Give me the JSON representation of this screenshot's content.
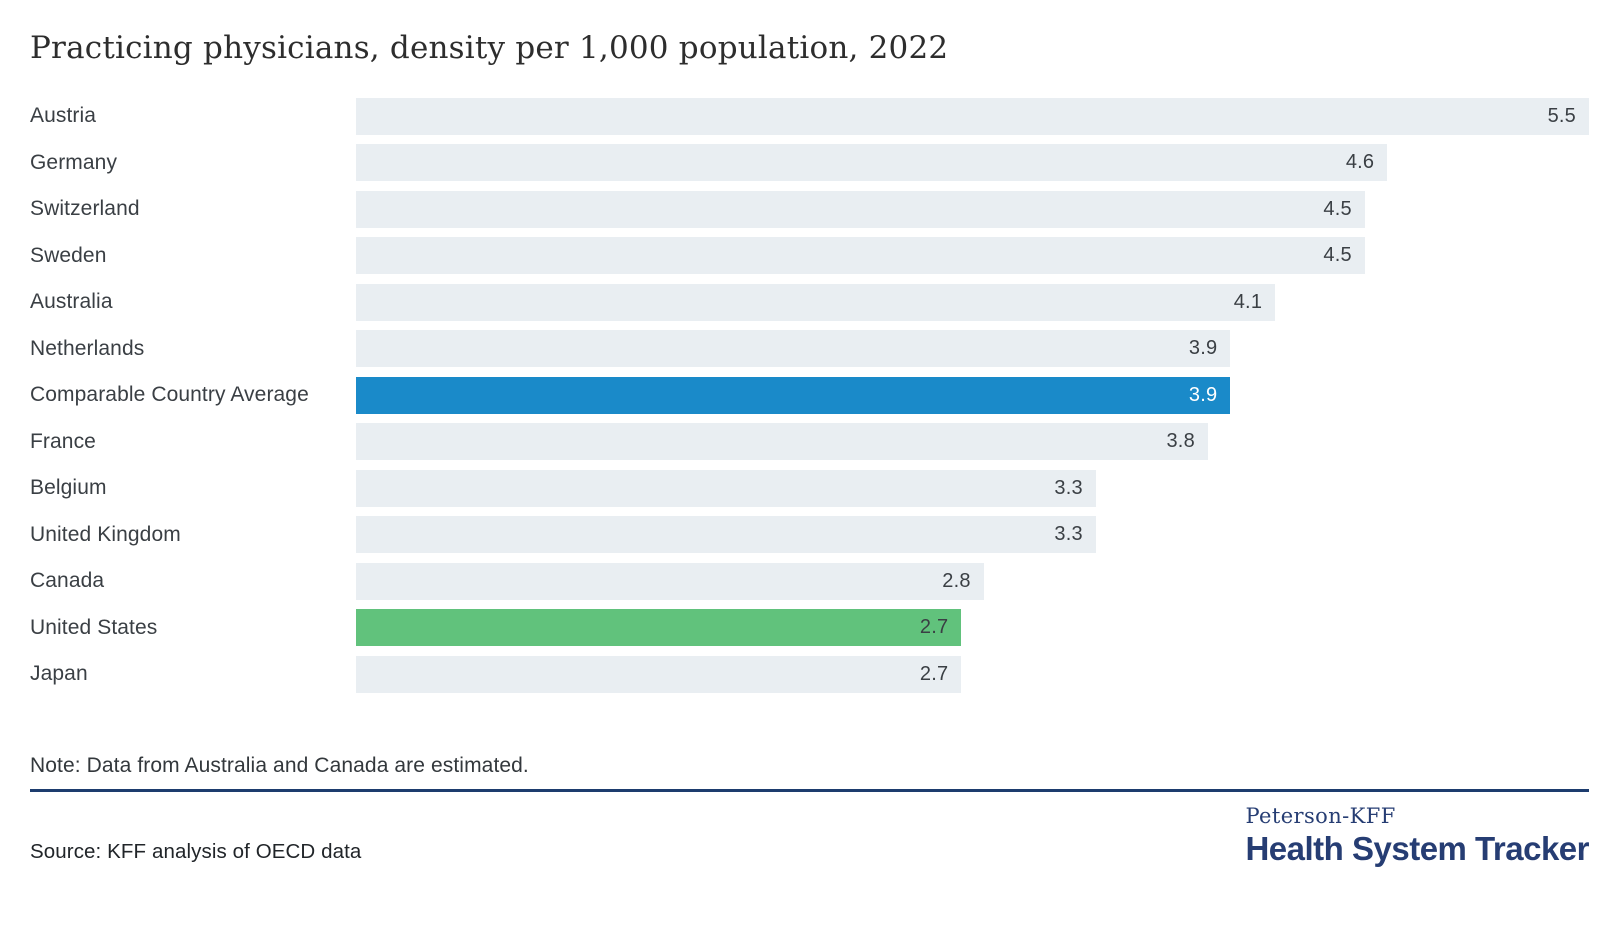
{
  "title": "Practicing physicians, density per 1,000 population, 2022",
  "note": "Note: Data from Australia and Canada are estimated.",
  "source": "Source: KFF analysis of OECD data",
  "logo": {
    "line1": "Peterson-KFF",
    "line2": "Health System Tracker"
  },
  "colors": {
    "title": "#2d2d2d",
    "label": "#3a3f44",
    "bar_default": "#e9eef2",
    "bar_average": "#1a8ac9",
    "bar_united_states": "#61c27c",
    "value_dark": "#3a3f44",
    "value_light": "#ffffff",
    "note": "#33383c",
    "source": "#212529",
    "rule_navy": "#1d3c6e",
    "logo_navy": "#263d73"
  },
  "chart_data": {
    "type": "bar",
    "orientation": "horizontal",
    "title": "Practicing physicians, density per 1,000 population, 2022",
    "xlabel": "",
    "ylabel": "",
    "xlim": [
      0,
      5.5
    ],
    "grid": false,
    "legend": false,
    "value_labels_position": "inside-end",
    "categories": [
      "Austria",
      "Germany",
      "Switzerland",
      "Sweden",
      "Australia",
      "Netherlands",
      "Comparable Country Average",
      "France",
      "Belgium",
      "United Kingdom",
      "Canada",
      "United States",
      "Japan"
    ],
    "values": [
      5.5,
      4.6,
      4.5,
      4.5,
      4.1,
      3.9,
      3.9,
      3.8,
      3.3,
      3.3,
      2.8,
      2.7,
      2.7
    ],
    "value_labels": [
      "5.5",
      "4.6",
      "4.5",
      "4.5",
      "4.1",
      "3.9",
      "3.9",
      "3.8",
      "3.3",
      "3.3",
      "2.8",
      "2.7",
      "2.7"
    ],
    "bar_styles": [
      "default",
      "default",
      "default",
      "default",
      "default",
      "default",
      "average",
      "default",
      "default",
      "default",
      "default",
      "united_states",
      "default"
    ]
  }
}
